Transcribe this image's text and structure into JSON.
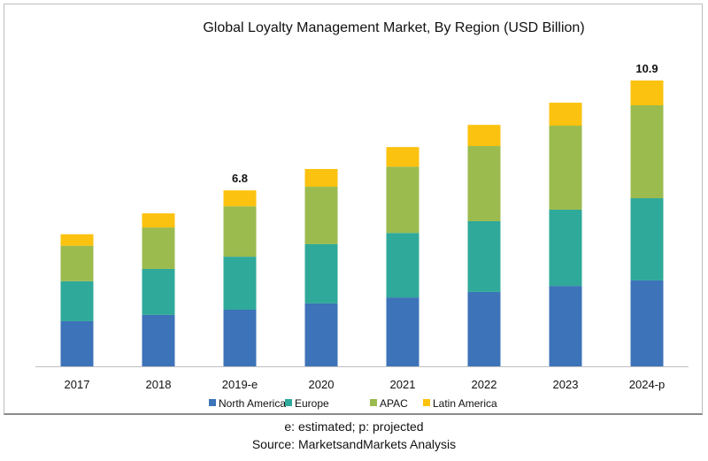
{
  "chart_data": {
    "type": "bar",
    "stacked": true,
    "title": "Global Loyalty Management Market, By Region (USD Billion)",
    "xlabel": "",
    "ylabel": "",
    "categories": [
      "2017",
      "2018",
      "2019-e",
      "2020",
      "2021",
      "2022",
      "2023",
      "2024-p"
    ],
    "series": [
      {
        "name": "North America",
        "color": "#3d73b8",
        "values": [
          1.73,
          1.97,
          2.17,
          2.41,
          2.64,
          2.85,
          3.08,
          3.29
        ]
      },
      {
        "name": "Europe",
        "color": "#2fa99a",
        "values": [
          1.53,
          1.76,
          2.03,
          2.27,
          2.47,
          2.71,
          2.92,
          3.15
        ]
      },
      {
        "name": "APAC",
        "color": "#9bbb4f",
        "values": [
          1.36,
          1.59,
          1.93,
          2.2,
          2.54,
          2.88,
          3.22,
          3.56
        ]
      },
      {
        "name": "Latin America",
        "color": "#fbc20f",
        "values": [
          0.44,
          0.54,
          0.61,
          0.68,
          0.75,
          0.81,
          0.88,
          0.95
        ]
      }
    ],
    "data_labels": [
      {
        "category": "2019-e",
        "text": "6.8"
      },
      {
        "category": "2024-p",
        "text": "10.9"
      }
    ],
    "ylim": [
      0,
      11
    ],
    "grid": false,
    "legend": "bottom"
  },
  "footnote": "e: estimated; p: projected",
  "source": "Source: MarketsandMarkets Analysis"
}
